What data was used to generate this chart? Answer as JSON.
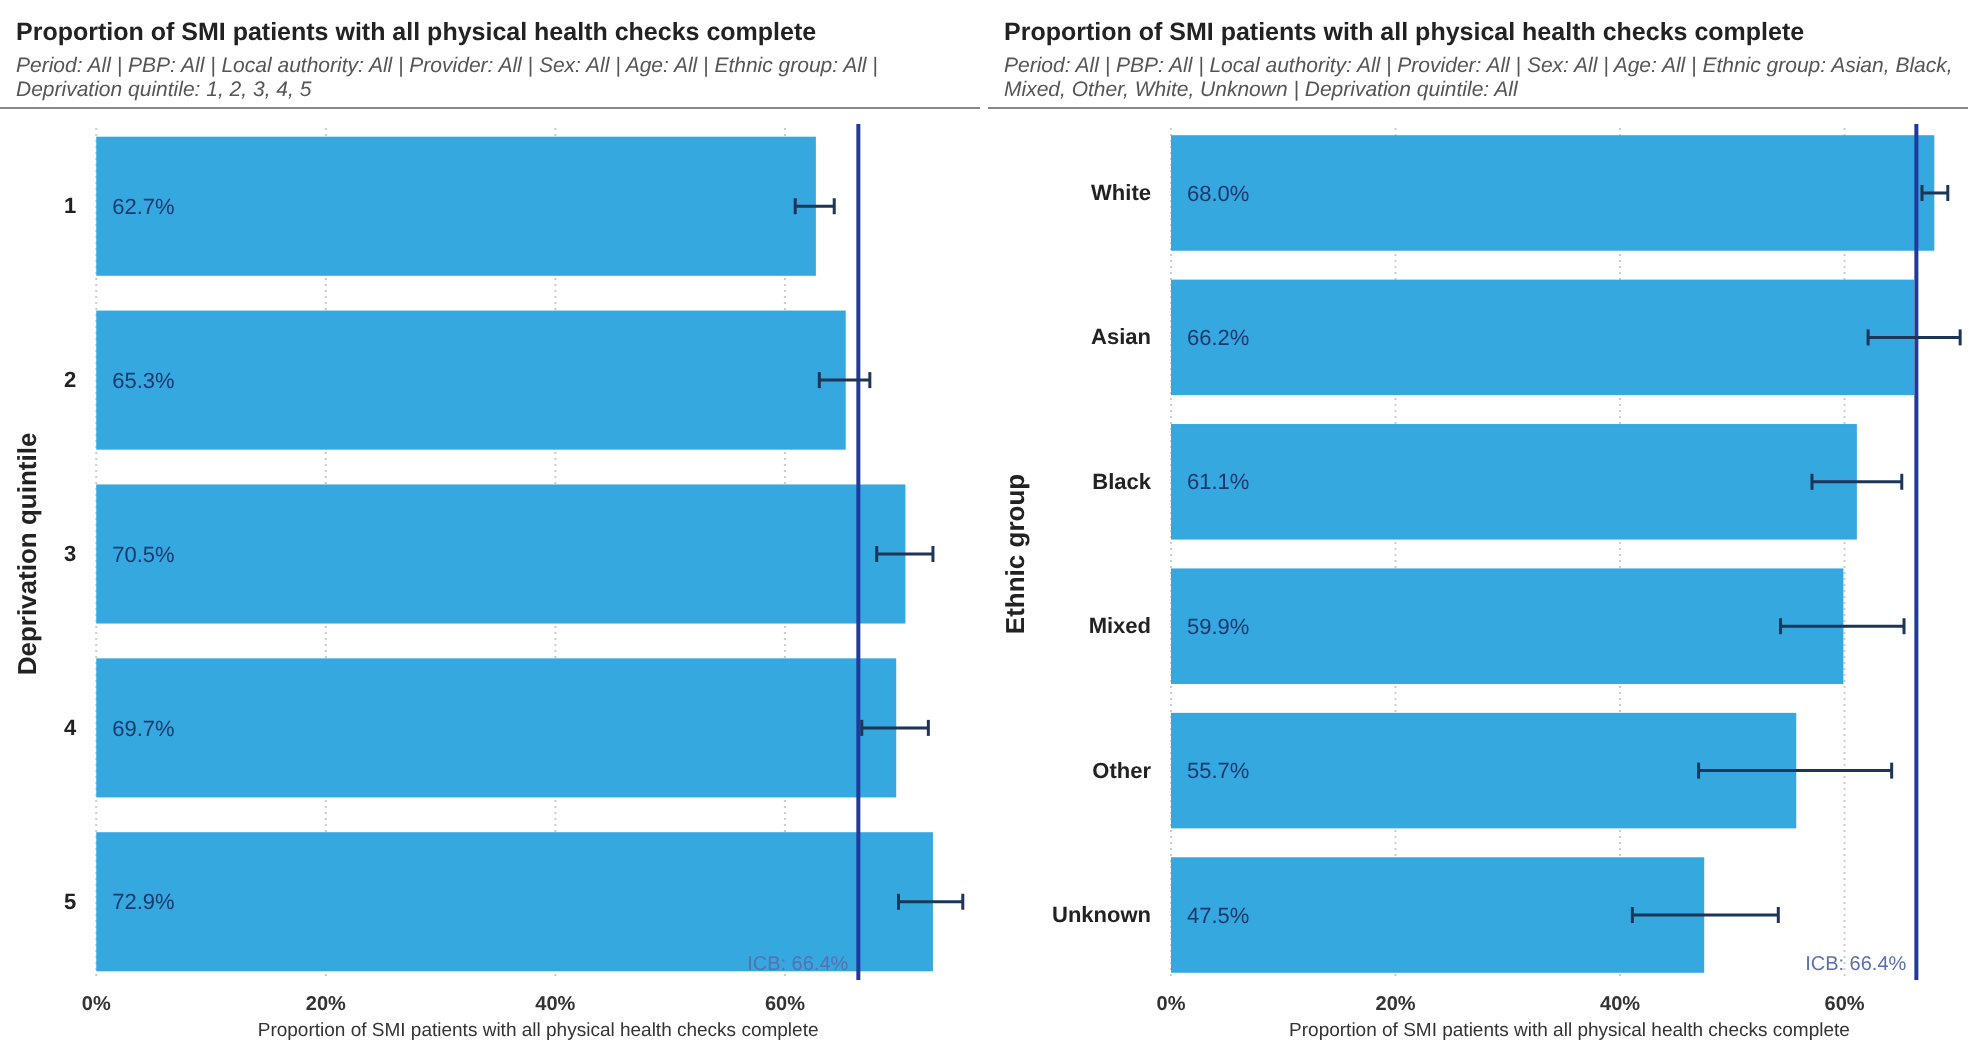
{
  "chart_data": [
    {
      "type": "bar",
      "orientation": "horizontal",
      "title": "Proportion of SMI patients with all physical health checks complete",
      "subtitle": "Period: All | PBP: All | Local authority: All | Provider: All | Sex: All | Age: All | Ethnic group: All | Deprivation quintile: 1, 2, 3, 4, 5",
      "xlabel": "Proportion of SMI patients with all physical health checks complete",
      "ylabel": "Deprivation quintile",
      "categories": [
        "1",
        "2",
        "3",
        "4",
        "5"
      ],
      "values": [
        62.7,
        65.3,
        70.5,
        69.7,
        72.9
      ],
      "value_labels": [
        "62.7%",
        "65.3%",
        "70.5%",
        "69.7%",
        "72.9%"
      ],
      "errors": [
        [
          60.9,
          64.3
        ],
        [
          63.0,
          67.4
        ],
        [
          68.0,
          72.9
        ],
        [
          66.7,
          72.5
        ],
        [
          69.9,
          75.5
        ]
      ],
      "color": "#35a8e0",
      "xlim": [
        0,
        77
      ],
      "xticks": [
        {
          "value": 0,
          "label": "0%"
        },
        {
          "value": 20,
          "label": "20%"
        },
        {
          "value": 40,
          "label": "40%"
        },
        {
          "value": 60,
          "label": "60%"
        }
      ],
      "grid": "x",
      "ref_lines": [
        {
          "axis": "x",
          "value": 66.4,
          "label": "ICB: 66.4%",
          "color": "#1f3a9e"
        }
      ]
    },
    {
      "type": "bar",
      "orientation": "horizontal",
      "title": "Proportion of SMI patients with all physical health checks complete",
      "subtitle": "Period: All | PBP: All | Local authority: All | Provider: All | Sex: All | Age: All | Ethnic group: Asian, Black, Mixed, Other, White, Unknown | Deprivation quintile: All",
      "xlabel": "Proportion of SMI patients with all physical health checks complete",
      "ylabel": "Ethnic group",
      "categories": [
        "White",
        "Asian",
        "Black",
        "Mixed",
        "Other",
        "Unknown"
      ],
      "values": [
        68.0,
        66.2,
        61.1,
        59.9,
        55.7,
        47.5
      ],
      "value_labels": [
        "68.0%",
        "66.2%",
        "61.1%",
        "59.9%",
        "55.7%",
        "47.5%"
      ],
      "errors": [
        [
          66.9,
          69.2
        ],
        [
          62.1,
          70.3
        ],
        [
          57.1,
          65.1
        ],
        [
          54.3,
          65.3
        ],
        [
          47.0,
          64.2
        ],
        [
          41.1,
          54.1
        ]
      ],
      "color": "#35a8e0",
      "xlim": [
        0,
        71
      ],
      "xticks": [
        {
          "value": 0,
          "label": "0%"
        },
        {
          "value": 20,
          "label": "20%"
        },
        {
          "value": 40,
          "label": "40%"
        },
        {
          "value": 60,
          "label": "60%"
        }
      ],
      "grid": "x",
      "ref_lines": [
        {
          "axis": "x",
          "value": 66.4,
          "label": "ICB: 66.4%",
          "color": "#1f3a9e"
        }
      ]
    }
  ]
}
